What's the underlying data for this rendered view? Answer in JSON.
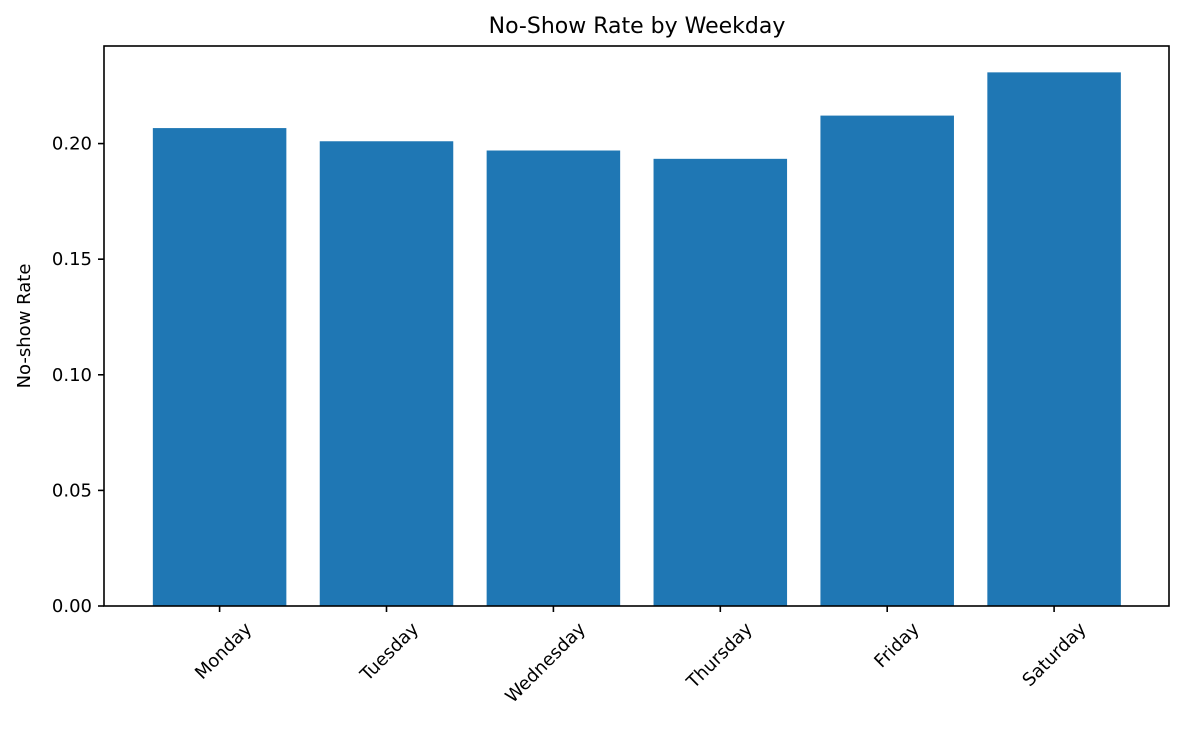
{
  "chart_data": {
    "type": "bar",
    "title": "No-Show Rate by Weekday",
    "xlabel": "",
    "ylabel": "No-show Rate",
    "categories": [
      "Monday",
      "Tuesday",
      "Wednesday",
      "Thursday",
      "Friday",
      "Saturday"
    ],
    "values": [
      0.2067,
      0.201,
      0.197,
      0.1934,
      0.2121,
      0.2308
    ],
    "ylim": [
      0,
      0.2422
    ],
    "yticks": [
      "0.00",
      "0.05",
      "0.10",
      "0.15",
      "0.20"
    ],
    "grid": false,
    "legend": "none",
    "bar_color": "#1f77b4"
  }
}
